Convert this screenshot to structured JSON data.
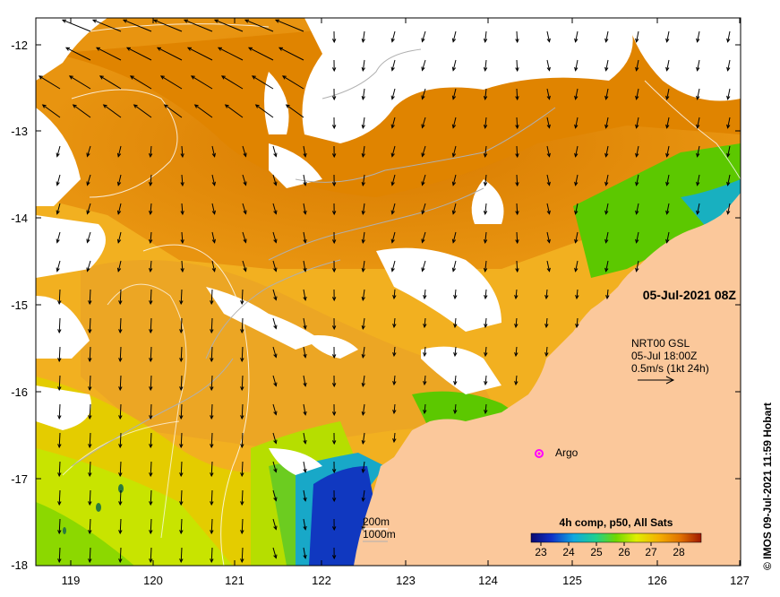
{
  "map": {
    "lon_ticks": [
      "119",
      "120",
      "121",
      "122",
      "123",
      "124",
      "125",
      "126",
      "127"
    ],
    "lat_ticks": [
      "-12",
      "-13",
      "-14",
      "-15",
      "-16",
      "-17",
      "-18"
    ],
    "lon_range": [
      118.6,
      127.0
    ],
    "lat_range": [
      -11.8,
      -18.0
    ],
    "timestamp": "05-Jul-2021 08Z",
    "current_source": "NRT00 GSL",
    "current_time": "05-Jul 18:00Z",
    "current_scale": "0.5m/s (1kt 24h)",
    "argo_label": "Argo",
    "isobath_200": "200m",
    "isobath_1000": "1000m",
    "colorbar_title": "4h comp, p50, All Sats",
    "colorbar_ticks": [
      "23",
      "24",
      "25",
      "26",
      "27",
      "28"
    ],
    "colorbar_range": [
      22.6,
      28.6
    ],
    "credit": "© IMOS 09-Jul-2021 11:59 Hobart"
  },
  "colors": {
    "land": "#fbc89b",
    "cloud": "#ffffff",
    "sst_warm": "#e58a00",
    "sst_orange": "#f0a010",
    "sst_mid": "#f2c400",
    "sst_yellow": "#d8e600",
    "sst_green": "#5fc800",
    "sst_cyan": "#10b8c8",
    "sst_blue": "#1040c8",
    "sst_navy": "#081890",
    "argo": "#ff00ff"
  }
}
